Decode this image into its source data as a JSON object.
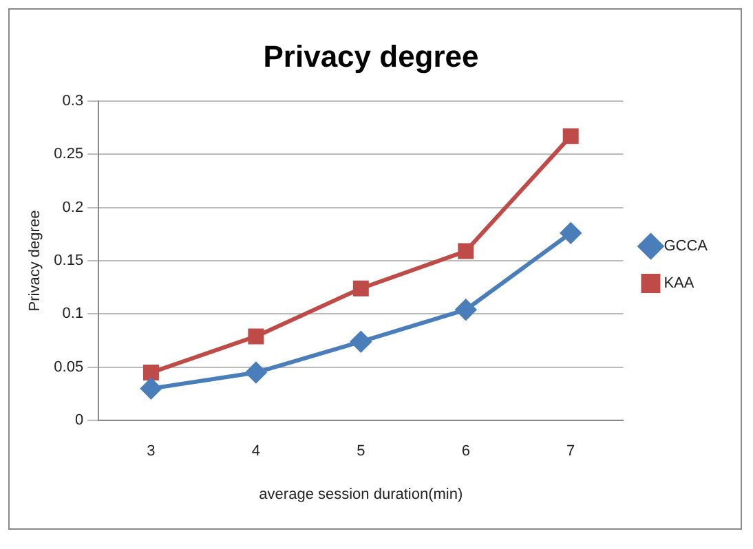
{
  "chart_data": {
    "type": "line",
    "title": "Privacy degree",
    "xlabel": "average session duration(min)",
    "ylabel": "Privacy degree",
    "categories": [
      "3",
      "4",
      "5",
      "6",
      "7"
    ],
    "series": [
      {
        "name": "GCCA",
        "color": "#4a7ebb",
        "marker": "diamond",
        "values": [
          0.03,
          0.045,
          0.074,
          0.104,
          0.176
        ]
      },
      {
        "name": "KAA",
        "color": "#be4b48",
        "marker": "square",
        "values": [
          0.045,
          0.079,
          0.124,
          0.159,
          0.267
        ]
      }
    ],
    "ylim": [
      0,
      0.3
    ],
    "yticks": [
      0,
      0.05,
      0.1,
      0.15,
      0.2,
      0.25,
      0.3
    ],
    "grid": "y",
    "legend": "right",
    "line_style": "solid"
  }
}
